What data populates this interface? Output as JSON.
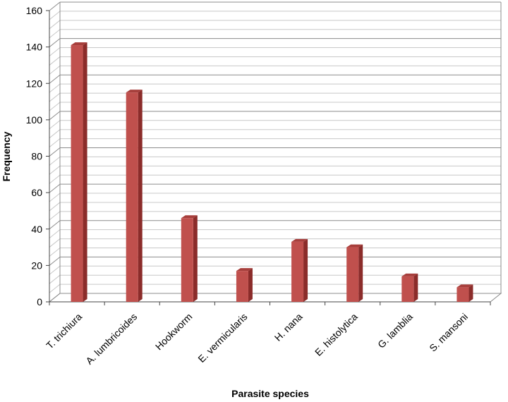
{
  "chart_data": {
    "type": "bar",
    "title": "",
    "xlabel": "Parasite species",
    "ylabel": "Frequency",
    "categories": [
      "T. trichiura",
      "A. lumbricoides",
      "Hookworm",
      "E. vermicularis",
      "H. nana",
      "E. histolytica",
      "G. lamblia",
      "S. mansoni"
    ],
    "values": [
      141,
      115,
      46,
      17,
      33,
      30,
      14,
      8
    ],
    "ylim": [
      0,
      160
    ],
    "yticks": [
      0,
      20,
      40,
      60,
      80,
      100,
      120,
      140,
      160
    ],
    "grid": true,
    "legend": "none",
    "bar_colors": {
      "front": "#c0504d",
      "side": "#8b2c2a",
      "top": "#a73f3c"
    }
  }
}
